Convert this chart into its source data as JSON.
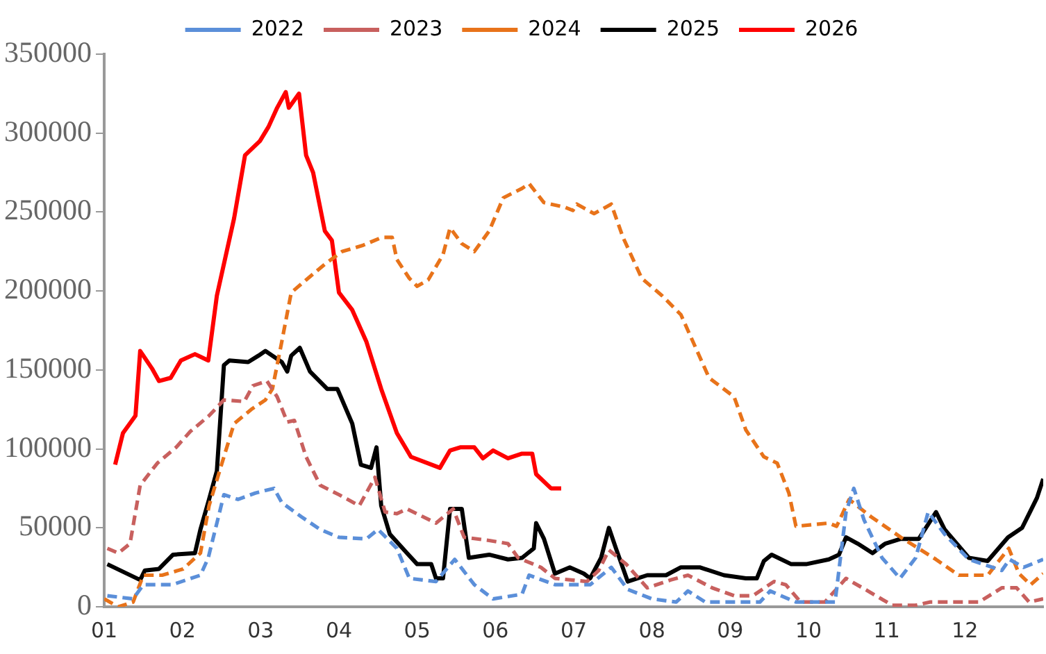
{
  "chart_data": {
    "type": "line",
    "legend": "top",
    "grid": false,
    "marker": "none",
    "xlim": [
      1,
      13
    ],
    "xticks": [
      {
        "value": 1,
        "label": "01"
      },
      {
        "value": 2,
        "label": "02"
      },
      {
        "value": 3,
        "label": "03"
      },
      {
        "value": 4,
        "label": "04"
      },
      {
        "value": 5,
        "label": "05"
      },
      {
        "value": 6,
        "label": "06"
      },
      {
        "value": 7,
        "label": "07"
      },
      {
        "value": 8,
        "label": "08"
      },
      {
        "value": 9,
        "label": "09"
      },
      {
        "value": 10,
        "label": "10"
      },
      {
        "value": 11,
        "label": "11"
      },
      {
        "value": 12,
        "label": "12"
      }
    ],
    "ylim": [
      0,
      350000
    ],
    "yticks": [
      0,
      50000,
      100000,
      150000,
      200000,
      250000,
      300000,
      350000
    ],
    "series": [
      {
        "name": "2022",
        "color": "#5b8fd9",
        "line_style": "dashed",
        "x": [
          1.04,
          1.37,
          1.5,
          1.87,
          2.23,
          2.33,
          2.53,
          2.71,
          2.93,
          3.17,
          3.27,
          3.52,
          3.76,
          4.0,
          4.35,
          4.5,
          4.74,
          4.9,
          5.24,
          5.48,
          5.73,
          5.97,
          6.34,
          6.43,
          6.76,
          7.21,
          7.48,
          7.69,
          8.0,
          8.31,
          8.46,
          8.68,
          9.23,
          9.38,
          9.51,
          9.84,
          10.34,
          10.48,
          10.58,
          10.71,
          10.94,
          11.17,
          11.37,
          11.53,
          11.74,
          12.05,
          12.47,
          12.57,
          12.75,
          13.0
        ],
        "values": [
          7000,
          5000,
          14000,
          14000,
          20000,
          31000,
          71000,
          68000,
          72000,
          75000,
          66000,
          57000,
          49000,
          44000,
          43000,
          49000,
          37000,
          18000,
          16000,
          30000,
          14000,
          5000,
          8000,
          20000,
          14000,
          14000,
          25000,
          11000,
          5000,
          3000,
          10000,
          3000,
          3000,
          3000,
          10000,
          3000,
          3000,
          60000,
          75000,
          55000,
          31000,
          18000,
          31000,
          60000,
          46000,
          30000,
          23000,
          30000,
          25000,
          30000
        ]
      },
      {
        "name": "2023",
        "color": "#c8605e",
        "line_style": "dashed",
        "x": [
          1.04,
          1.18,
          1.33,
          1.46,
          1.68,
          1.92,
          2.1,
          2.34,
          2.53,
          2.79,
          2.9,
          3.08,
          3.21,
          3.34,
          3.43,
          3.58,
          3.76,
          4.0,
          4.26,
          4.46,
          4.59,
          4.74,
          4.87,
          5.24,
          5.46,
          5.6,
          5.92,
          6.16,
          6.29,
          6.58,
          6.76,
          7.17,
          7.32,
          7.45,
          7.67,
          7.94,
          8.24,
          8.46,
          8.77,
          9.05,
          9.29,
          9.56,
          9.71,
          9.9,
          10.21,
          10.48,
          10.76,
          11.07,
          11.37,
          11.55,
          11.87,
          12.18,
          12.47,
          12.66,
          12.82,
          13.0
        ],
        "values": [
          37000,
          34000,
          40000,
          77000,
          91000,
          101000,
          111000,
          121000,
          131000,
          130000,
          140000,
          143000,
          133000,
          117000,
          118000,
          95000,
          77000,
          71000,
          64000,
          82000,
          60000,
          59000,
          62000,
          53000,
          62000,
          44000,
          42000,
          40000,
          31000,
          25000,
          18000,
          16000,
          23000,
          36000,
          27000,
          12000,
          17000,
          20000,
          12000,
          7000,
          7000,
          16000,
          14000,
          3000,
          3000,
          18000,
          10000,
          1000,
          1000,
          3000,
          3000,
          3000,
          12000,
          12000,
          3000,
          5000
        ]
      },
      {
        "name": "2024",
        "color": "#e8731a",
        "line_style": "dashed",
        "x": [
          1.0,
          1.18,
          1.37,
          1.5,
          1.74,
          2.01,
          2.23,
          2.34,
          2.53,
          2.66,
          2.88,
          3.06,
          3.15,
          3.27,
          3.39,
          3.58,
          3.82,
          4.04,
          4.31,
          4.55,
          4.68,
          4.74,
          4.9,
          5.0,
          5.14,
          5.33,
          5.42,
          5.57,
          5.73,
          5.92,
          6.1,
          6.34,
          6.43,
          6.62,
          6.89,
          6.99,
          7.04,
          7.26,
          7.48,
          7.63,
          7.87,
          8.13,
          8.37,
          8.73,
          9.05,
          9.2,
          9.43,
          9.6,
          9.75,
          9.84,
          10.26,
          10.36,
          10.52,
          10.8,
          11.18,
          11.63,
          11.92,
          12.29,
          12.56,
          12.69,
          12.84,
          13.0
        ],
        "values": [
          5000,
          0,
          3000,
          20000,
          20000,
          24000,
          34000,
          64000,
          95000,
          116000,
          125000,
          131000,
          138000,
          168000,
          199000,
          207000,
          217000,
          225000,
          229000,
          234000,
          234000,
          220000,
          208000,
          203000,
          207000,
          223000,
          240000,
          230000,
          225000,
          238000,
          259000,
          265000,
          268000,
          256000,
          253000,
          251000,
          255000,
          249000,
          255000,
          234000,
          208000,
          197000,
          185000,
          145000,
          133000,
          112000,
          95000,
          91000,
          72000,
          51000,
          53000,
          51000,
          68000,
          57000,
          44000,
          30000,
          20000,
          20000,
          37000,
          21000,
          14000,
          21000
        ]
      },
      {
        "name": "2025",
        "color": "#000000",
        "line_style": "solid",
        "x": [
          1.04,
          1.46,
          1.52,
          1.7,
          1.88,
          2.16,
          2.23,
          2.34,
          2.44,
          2.53,
          2.6,
          2.84,
          2.97,
          3.06,
          3.27,
          3.34,
          3.39,
          3.5,
          3.63,
          3.85,
          3.98,
          4.17,
          4.28,
          4.41,
          4.48,
          4.54,
          4.65,
          4.87,
          5.0,
          5.18,
          5.24,
          5.33,
          5.42,
          5.57,
          5.66,
          5.92,
          6.16,
          6.34,
          6.49,
          6.52,
          6.62,
          6.76,
          6.95,
          7.13,
          7.21,
          7.35,
          7.45,
          7.54,
          7.69,
          7.94,
          8.18,
          8.37,
          8.61,
          8.92,
          9.2,
          9.34,
          9.43,
          9.53,
          9.78,
          9.97,
          10.26,
          10.39,
          10.48,
          10.63,
          10.82,
          10.98,
          11.18,
          11.41,
          11.63,
          11.74,
          12.05,
          12.29,
          12.55,
          12.73,
          12.82,
          12.92,
          13.0
        ],
        "values": [
          27000,
          17000,
          23000,
          24000,
          33000,
          34000,
          49000,
          68000,
          86000,
          153000,
          156000,
          155000,
          159000,
          162000,
          155000,
          149000,
          159000,
          164000,
          149000,
          138000,
          138000,
          116000,
          90000,
          88000,
          101000,
          64000,
          46000,
          34000,
          27000,
          27000,
          18000,
          18000,
          62000,
          62000,
          31000,
          33000,
          30000,
          31000,
          37000,
          53000,
          43000,
          21000,
          25000,
          21000,
          18000,
          31000,
          50000,
          37000,
          16000,
          20000,
          20000,
          25000,
          25000,
          20000,
          18000,
          18000,
          29000,
          33000,
          27000,
          27000,
          30000,
          33000,
          44000,
          40000,
          34000,
          40000,
          43000,
          43000,
          60000,
          49000,
          31000,
          29000,
          44000,
          50000,
          59000,
          69000,
          81000
        ]
      },
      {
        "name": "2026",
        "color": "#ff0000",
        "line_style": "solid",
        "x": [
          1.14,
          1.24,
          1.4,
          1.46,
          1.61,
          1.7,
          1.85,
          1.98,
          2.16,
          2.33,
          2.44,
          2.66,
          2.8,
          2.99,
          3.1,
          3.21,
          3.32,
          3.36,
          3.49,
          3.58,
          3.67,
          3.82,
          3.91,
          4.0,
          4.17,
          4.35,
          4.54,
          4.74,
          4.92,
          5.29,
          5.42,
          5.55,
          5.73,
          5.84,
          5.97,
          6.16,
          6.34,
          6.47,
          6.52,
          6.71,
          6.84
        ],
        "values": [
          90000,
          110000,
          121000,
          162000,
          151000,
          143000,
          145000,
          156000,
          160000,
          156000,
          197000,
          246000,
          286000,
          295000,
          304000,
          316000,
          326000,
          316000,
          325000,
          286000,
          275000,
          238000,
          232000,
          199000,
          188000,
          168000,
          138000,
          110000,
          95000,
          88000,
          99000,
          101000,
          101000,
          94000,
          99000,
          94000,
          97000,
          97000,
          84000,
          75000,
          75000
        ]
      }
    ]
  }
}
